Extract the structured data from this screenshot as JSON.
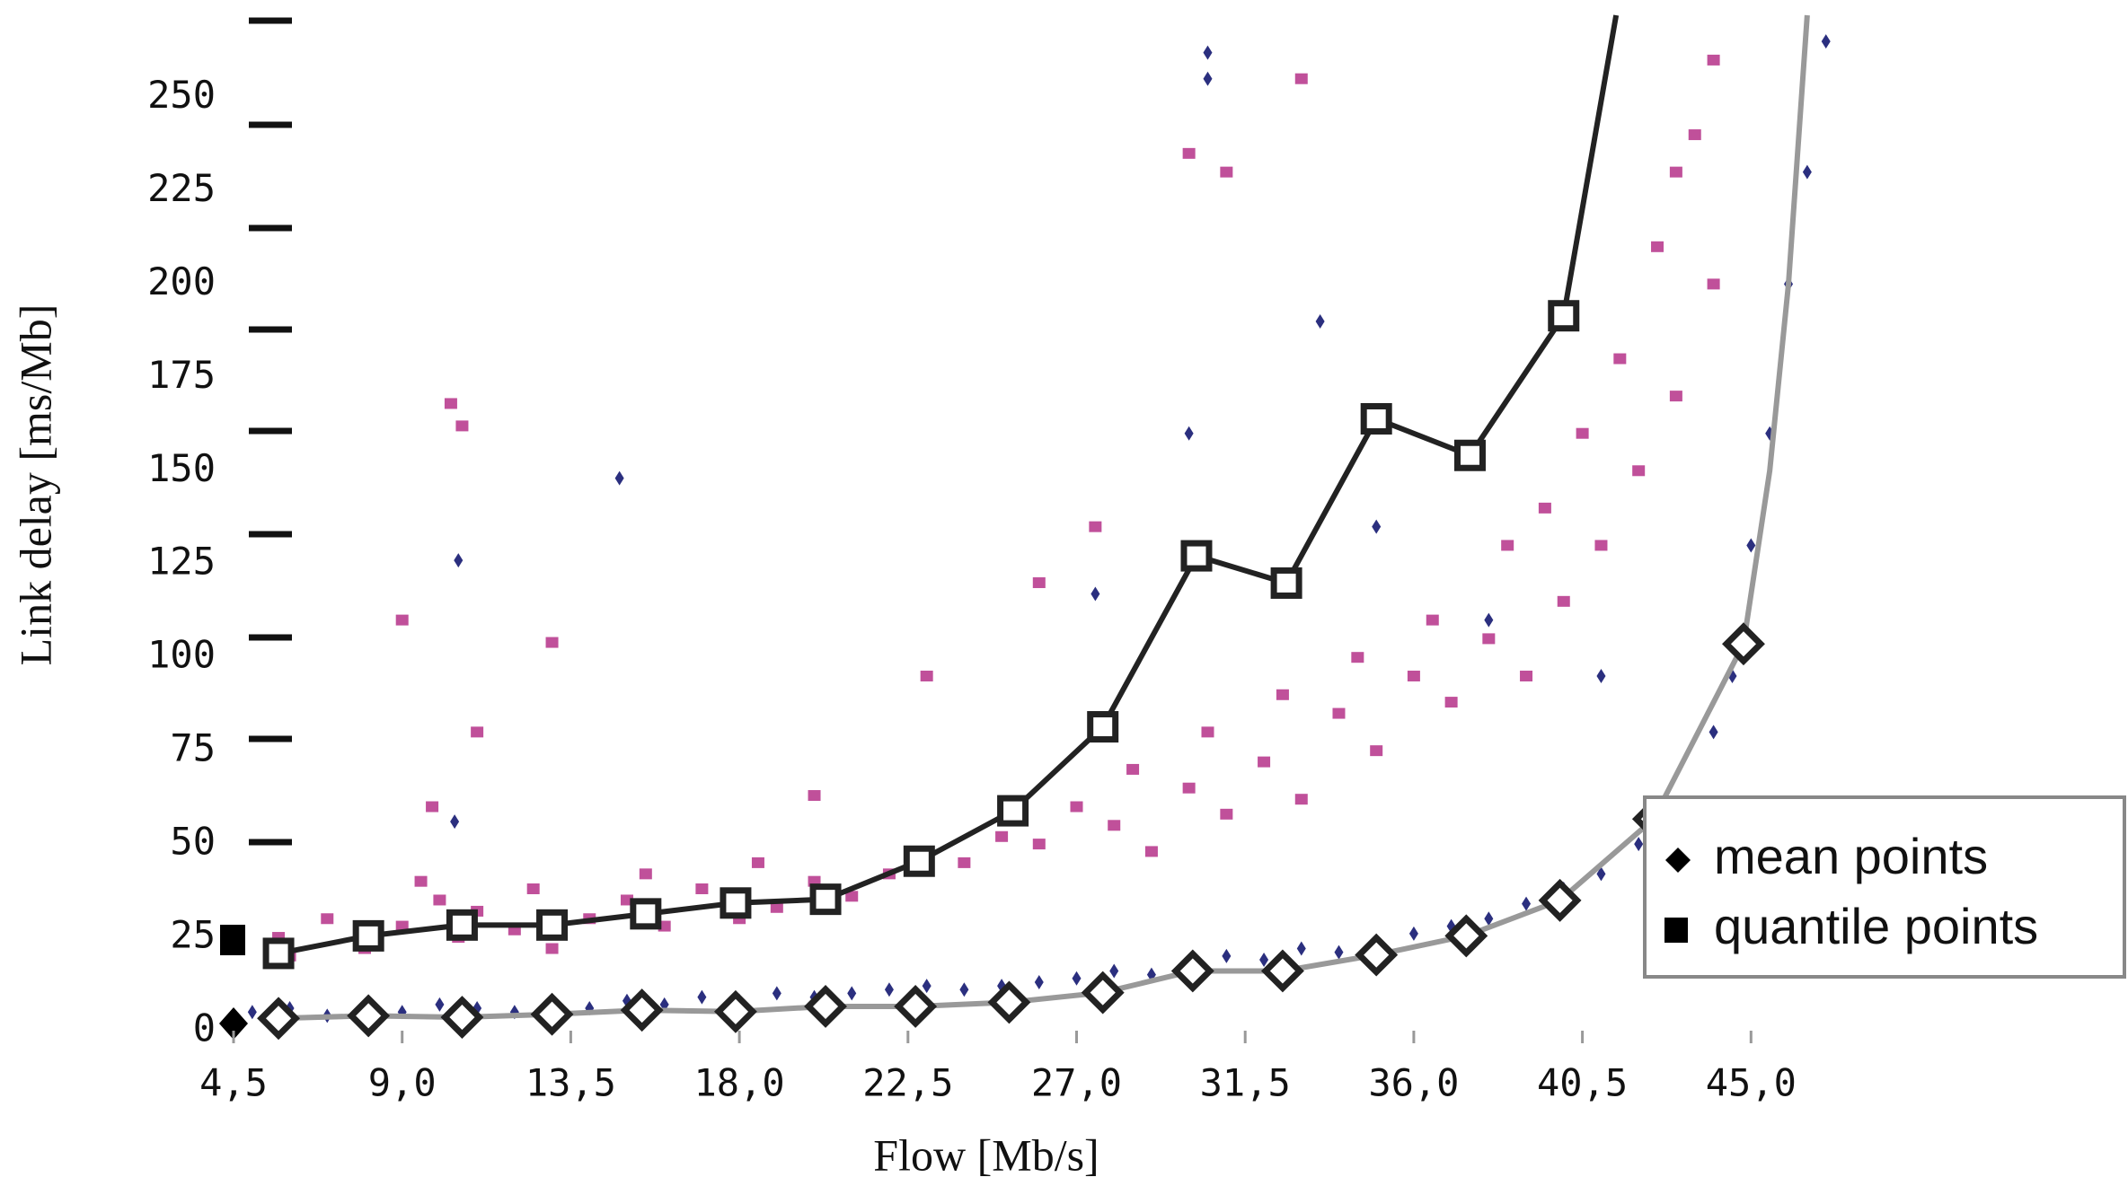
{
  "chart_data": {
    "type": "scatter",
    "x_label": "Flow [Mb/s]",
    "y_label": "Link delay  [ms/Mb]",
    "xlim": [
      4.5,
      53.0
    ],
    "ylim": [
      0,
      272
    ],
    "xticks": [
      {
        "value": 4.5,
        "label": "4,5"
      },
      {
        "value": 9.0,
        "label": "9,0"
      },
      {
        "value": 13.5,
        "label": "13,5"
      },
      {
        "value": 18.0,
        "label": "18,0"
      },
      {
        "value": 22.5,
        "label": "22,5"
      },
      {
        "value": 27.0,
        "label": "27,0"
      },
      {
        "value": 31.5,
        "label": "31,5"
      },
      {
        "value": 36.0,
        "label": "36,0"
      },
      {
        "value": 40.5,
        "label": "40,5"
      },
      {
        "value": 45.0,
        "label": "45,0"
      }
    ],
    "yticks": [
      0,
      25,
      50,
      75,
      100,
      125,
      150,
      175,
      200,
      225,
      250
    ],
    "series": [
      {
        "color": "#c0509a",
        "marker": "square-fill",
        "line": false,
        "x": [
          5.7,
          6,
          7,
          8,
          9,
          9.5,
          10,
          10.5,
          11,
          12,
          12.5,
          13,
          14,
          15,
          15.5,
          16,
          17,
          18,
          18.5,
          19,
          20,
          21,
          22,
          23,
          24,
          25,
          26,
          27,
          28,
          28.5,
          29,
          30,
          30.5,
          31,
          32,
          32.5,
          33,
          34,
          34.5,
          35,
          36,
          36.5,
          37,
          38,
          38.5,
          39,
          39.5,
          40,
          40.5,
          41,
          41.5,
          42,
          42.5,
          43,
          43.5,
          44,
          44,
          43,
          9.8,
          10.6,
          10.3,
          9,
          13,
          11,
          23,
          27.5,
          30,
          31,
          33,
          26,
          20
        ],
        "values": [
          25,
          20,
          30,
          22,
          28,
          40,
          35,
          25,
          32,
          27,
          38,
          22,
          30,
          35,
          42,
          28,
          38,
          30,
          45,
          33,
          40,
          36,
          42,
          48,
          45,
          52,
          50,
          60,
          55,
          70,
          48,
          65,
          80,
          58,
          72,
          90,
          62,
          85,
          100,
          75,
          95,
          110,
          88,
          105,
          130,
          95,
          140,
          115,
          160,
          130,
          180,
          150,
          210,
          170,
          240,
          200,
          260,
          230,
          60,
          162,
          168,
          110,
          104,
          80,
          95,
          135,
          235,
          230,
          255,
          120,
          63
        ]
      },
      {
        "color": "#2b2f7f",
        "marker": "diamond-fill",
        "line": false,
        "x": [
          5,
          6,
          7,
          8,
          9,
          10,
          11,
          12,
          13,
          14,
          15,
          16,
          17,
          18,
          19,
          20,
          21,
          22,
          23,
          24,
          25,
          26,
          27,
          28,
          29,
          30,
          31,
          32,
          33,
          34,
          35,
          36,
          37,
          38,
          39,
          40,
          41,
          42,
          43,
          44,
          44.5,
          45,
          45.5,
          46,
          46.5,
          47,
          14.8,
          10.5,
          10.4,
          27.5,
          30,
          35,
          38,
          41,
          30.5,
          30.5,
          33.5
        ],
        "values": [
          5,
          6,
          4,
          6,
          5,
          7,
          6,
          5,
          7,
          6,
          8,
          7,
          9,
          8,
          10,
          9,
          10,
          11,
          12,
          11,
          12,
          13,
          14,
          16,
          15,
          18,
          20,
          19,
          22,
          21,
          24,
          26,
          28,
          30,
          34,
          38,
          42,
          50,
          60,
          80,
          95,
          130,
          160,
          200,
          230,
          265,
          148,
          126,
          56,
          117,
          160,
          135,
          110,
          95,
          255,
          262,
          190
        ]
      },
      {
        "name": "quantile points",
        "color": "#222222",
        "marker": "square",
        "line": true,
        "x": [
          5.7,
          8.1,
          10.6,
          13.0,
          15.5,
          17.9,
          20.3,
          22.8,
          25.3,
          27.7,
          30.2,
          32.6,
          35.0,
          37.5,
          40.0
        ],
        "values": [
          20.7,
          25.4,
          28.3,
          28.3,
          31.3,
          34.2,
          35.2,
          45.4,
          58.9,
          81.4,
          127.2,
          119.9,
          163.9,
          154.1,
          191.5
        ]
      },
      {
        "name": "mean points",
        "color": "#999999",
        "marker": "diamond",
        "line": true,
        "x": [
          5.7,
          8.1,
          10.6,
          13.0,
          15.4,
          17.9,
          20.3,
          22.7,
          25.2,
          27.7,
          30.1,
          32.5,
          35.0,
          37.4,
          39.9,
          42.4,
          44.8
        ],
        "values": [
          3.3,
          4,
          3.6,
          4.4,
          5.5,
          5.1,
          6.5,
          6.5,
          7.6,
          10.2,
          16,
          16,
          20.3,
          25.4,
          34.9,
          56.7,
          103.6
        ]
      },
      {
        "color": "#222222",
        "marker": "none",
        "line": true,
        "x": [
          40.0,
          41.4
        ],
        "values": [
          191.5,
          272
        ]
      },
      {
        "color": "#999999",
        "marker": "none",
        "line": true,
        "x": [
          44.8,
          45.5,
          46.0,
          46.5
        ],
        "values": [
          103.6,
          150,
          200,
          272
        ]
      }
    ]
  }
}
